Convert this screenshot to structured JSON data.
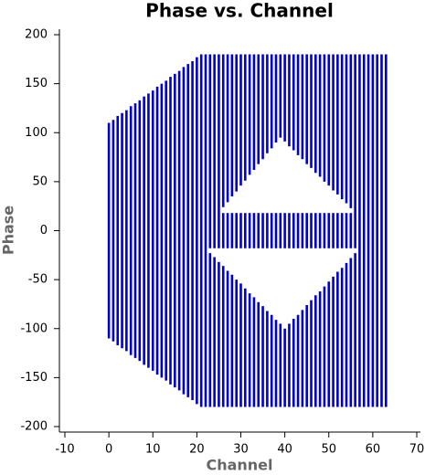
{
  "chart_data": {
    "type": "range",
    "title": "Phase vs. Channel",
    "x_label": "Channel",
    "y_label": "Phase",
    "color": "#0000cc",
    "xlim": [
      -10,
      70
    ],
    "xticks": [
      -10,
      0,
      10,
      20,
      30,
      40,
      50,
      60,
      70
    ],
    "ylim": [
      -200,
      200
    ],
    "yticks": [
      -200,
      -150,
      -100,
      -50,
      0,
      50,
      100,
      150,
      200
    ],
    "x": [
      0,
      1,
      2,
      3,
      4,
      5,
      6,
      7,
      8,
      9,
      10,
      11,
      12,
      13,
      14,
      15,
      16,
      17,
      18,
      19,
      20,
      21,
      22,
      23,
      24,
      25,
      26,
      27,
      28,
      29,
      30,
      31,
      32,
      33,
      34,
      35,
      36,
      37,
      38,
      39,
      40,
      41,
      42,
      43,
      44,
      45,
      46,
      47,
      48,
      49,
      50,
      51,
      52,
      53,
      54,
      55,
      56,
      57,
      58,
      59,
      60,
      61,
      62,
      63
    ],
    "ranges": [
      [
        [
          -110,
          110
        ]
      ],
      [
        [
          -113,
          113
        ]
      ],
      [
        [
          -117,
          117
        ]
      ],
      [
        [
          -120,
          120
        ]
      ],
      [
        [
          -123,
          123
        ]
      ],
      [
        [
          -127,
          127
        ]
      ],
      [
        [
          -130,
          130
        ]
      ],
      [
        [
          -133,
          133
        ]
      ],
      [
        [
          -137,
          137
        ]
      ],
      [
        [
          -140,
          140
        ]
      ],
      [
        [
          -143,
          143
        ]
      ],
      [
        [
          -147,
          147
        ]
      ],
      [
        [
          -150,
          150
        ]
      ],
      [
        [
          -153,
          153
        ]
      ],
      [
        [
          -157,
          157
        ]
      ],
      [
        [
          -160,
          160
        ]
      ],
      [
        [
          -163,
          163
        ]
      ],
      [
        [
          -167,
          167
        ]
      ],
      [
        [
          -170,
          170
        ]
      ],
      [
        [
          -173,
          173
        ]
      ],
      [
        [
          -177,
          177
        ]
      ],
      [
        [
          -180,
          180
        ]
      ],
      [
        [
          -180,
          180
        ]
      ],
      [
        [
          -180,
          -23
        ],
        [
          -18,
          180
        ]
      ],
      [
        [
          -180,
          -27
        ],
        [
          -18,
          180
        ]
      ],
      [
        [
          -180,
          -32
        ],
        [
          -18,
          180
        ]
      ],
      [
        [
          -180,
          -36
        ],
        [
          -18,
          18
        ],
        [
          24,
          180
        ]
      ],
      [
        [
          -180,
          -41
        ],
        [
          -18,
          18
        ],
        [
          29,
          180
        ]
      ],
      [
        [
          -180,
          -45
        ],
        [
          -18,
          18
        ],
        [
          35,
          180
        ]
      ],
      [
        [
          -180,
          -50
        ],
        [
          -18,
          18
        ],
        [
          40,
          180
        ]
      ],
      [
        [
          -180,
          -54
        ],
        [
          -18,
          18
        ],
        [
          46,
          180
        ]
      ],
      [
        [
          -180,
          -59
        ],
        [
          -18,
          18
        ],
        [
          51,
          180
        ]
      ],
      [
        [
          -180,
          -64
        ],
        [
          -18,
          18
        ],
        [
          57,
          180
        ]
      ],
      [
        [
          -180,
          -68
        ],
        [
          -18,
          18
        ],
        [
          62,
          180
        ]
      ],
      [
        [
          -180,
          -73
        ],
        [
          -18,
          18
        ],
        [
          68,
          180
        ]
      ],
      [
        [
          -180,
          -77
        ],
        [
          -18,
          18
        ],
        [
          73,
          180
        ]
      ],
      [
        [
          -180,
          -82
        ],
        [
          -18,
          18
        ],
        [
          79,
          180
        ]
      ],
      [
        [
          -180,
          -86
        ],
        [
          -18,
          18
        ],
        [
          84,
          180
        ]
      ],
      [
        [
          -180,
          -91
        ],
        [
          -18,
          18
        ],
        [
          90,
          180
        ]
      ],
      [
        [
          -180,
          -95
        ],
        [
          -18,
          18
        ],
        [
          95,
          180
        ]
      ],
      [
        [
          -180,
          -100
        ],
        [
          -18,
          18
        ],
        [
          91,
          180
        ]
      ],
      [
        [
          -180,
          -95
        ],
        [
          -18,
          18
        ],
        [
          86,
          180
        ]
      ],
      [
        [
          -180,
          -90
        ],
        [
          -18,
          18
        ],
        [
          82,
          180
        ]
      ],
      [
        [
          -180,
          -86
        ],
        [
          -18,
          18
        ],
        [
          77,
          180
        ]
      ],
      [
        [
          -180,
          -81
        ],
        [
          -18,
          18
        ],
        [
          73,
          180
        ]
      ],
      [
        [
          -180,
          -76
        ],
        [
          -18,
          18
        ],
        [
          68,
          180
        ]
      ],
      [
        [
          -180,
          -71
        ],
        [
          -18,
          18
        ],
        [
          64,
          180
        ]
      ],
      [
        [
          -180,
          -66
        ],
        [
          -18,
          18
        ],
        [
          59,
          180
        ]
      ],
      [
        [
          -180,
          -62
        ],
        [
          -18,
          18
        ],
        [
          55,
          180
        ]
      ],
      [
        [
          -180,
          -57
        ],
        [
          -18,
          18
        ],
        [
          50,
          180
        ]
      ],
      [
        [
          -180,
          -52
        ],
        [
          -18,
          18
        ],
        [
          46,
          180
        ]
      ],
      [
        [
          -180,
          -47
        ],
        [
          -18,
          18
        ],
        [
          41,
          180
        ]
      ],
      [
        [
          -180,
          -42
        ],
        [
          -18,
          18
        ],
        [
          37,
          180
        ]
      ],
      [
        [
          -180,
          -38
        ],
        [
          -18,
          18
        ],
        [
          32,
          180
        ]
      ],
      [
        [
          -180,
          -33
        ],
        [
          -18,
          18
        ],
        [
          28,
          180
        ]
      ],
      [
        [
          -180,
          -28
        ],
        [
          -18,
          18
        ],
        [
          23,
          180
        ]
      ],
      [
        [
          -180,
          -23
        ],
        [
          -18,
          180
        ]
      ],
      [
        [
          -180,
          180
        ]
      ],
      [
        [
          -180,
          180
        ]
      ],
      [
        [
          -180,
          180
        ]
      ],
      [
        [
          -180,
          180
        ]
      ],
      [
        [
          -180,
          180
        ]
      ],
      [
        [
          -180,
          180
        ]
      ],
      [
        [
          -180,
          180
        ]
      ]
    ]
  }
}
